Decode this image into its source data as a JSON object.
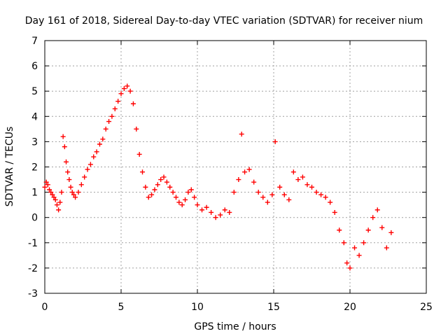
{
  "chart_data": {
    "type": "scatter",
    "title": "Day 161 of 2018, Sidereal Day-to-day VTEC variation (SDTVAR) for receiver nium",
    "xlabel": "GPS time / hours",
    "ylabel": "SDTVAR / TECUs",
    "xlim": [
      0,
      25
    ],
    "ylim": [
      -3,
      7
    ],
    "xticks": [
      "0",
      "5",
      "10",
      "15",
      "20",
      "25"
    ],
    "yticks": [
      "-3",
      "-2",
      "-1",
      "0",
      "1",
      "2",
      "3",
      "4",
      "5",
      "6",
      "7"
    ],
    "grid": true,
    "marker": "+",
    "color": "#ff0000",
    "series": [
      {
        "name": "SDTVAR",
        "x": [
          0.0,
          0.1,
          0.2,
          0.3,
          0.4,
          0.5,
          0.6,
          0.7,
          0.8,
          0.9,
          1.0,
          1.1,
          1.2,
          1.3,
          1.4,
          1.5,
          1.6,
          1.7,
          1.8,
          1.9,
          2.0,
          2.2,
          2.4,
          2.6,
          2.8,
          3.0,
          3.2,
          3.4,
          3.6,
          3.8,
          4.0,
          4.2,
          4.4,
          4.6,
          4.8,
          5.0,
          5.2,
          5.4,
          5.6,
          5.8,
          6.0,
          6.2,
          6.4,
          6.6,
          6.8,
          7.0,
          7.2,
          7.4,
          7.6,
          7.8,
          8.0,
          8.2,
          8.4,
          8.6,
          8.8,
          9.0,
          9.2,
          9.4,
          9.6,
          9.8,
          10.0,
          10.3,
          10.6,
          10.9,
          11.2,
          11.5,
          11.8,
          12.1,
          12.4,
          12.7,
          12.9,
          13.1,
          13.4,
          13.7,
          14.0,
          14.3,
          14.6,
          14.9,
          15.1,
          15.4,
          15.7,
          16.0,
          16.3,
          16.6,
          16.9,
          17.2,
          17.5,
          17.8,
          18.1,
          18.4,
          18.7,
          19.0,
          19.3,
          19.6,
          19.8,
          20.0,
          20.3,
          20.6,
          20.9,
          21.2,
          21.5,
          21.8,
          22.1,
          22.4,
          22.7
        ],
        "values": [
          1.2,
          1.4,
          1.3,
          1.1,
          1.0,
          0.9,
          0.8,
          0.7,
          0.5,
          0.3,
          0.6,
          1.0,
          3.2,
          2.8,
          2.2,
          1.8,
          1.5,
          1.2,
          1.0,
          0.9,
          0.8,
          1.0,
          1.3,
          1.6,
          1.9,
          2.1,
          2.4,
          2.6,
          2.9,
          3.1,
          3.5,
          3.8,
          4.0,
          4.3,
          4.6,
          4.9,
          5.1,
          5.2,
          5.0,
          4.5,
          3.5,
          2.5,
          1.8,
          1.2,
          0.8,
          0.9,
          1.1,
          1.3,
          1.5,
          1.6,
          1.4,
          1.2,
          1.0,
          0.8,
          0.6,
          0.5,
          0.7,
          1.0,
          1.1,
          0.8,
          0.5,
          0.3,
          0.4,
          0.2,
          0.0,
          0.1,
          0.3,
          0.2,
          1.0,
          1.5,
          3.3,
          1.8,
          1.9,
          1.4,
          1.0,
          0.8,
          0.6,
          0.9,
          3.0,
          1.2,
          0.9,
          0.7,
          1.8,
          1.5,
          1.6,
          1.3,
          1.2,
          1.0,
          0.9,
          0.8,
          0.6,
          0.2,
          -0.5,
          -1.0,
          -1.8,
          -2.0,
          -1.2,
          -1.5,
          -1.0,
          -0.5,
          0.0,
          0.3,
          -0.4,
          -1.2,
          -0.6
        ]
      }
    ]
  }
}
